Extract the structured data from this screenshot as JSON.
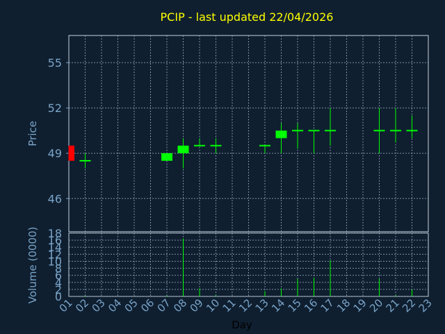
{
  "chart_data": [
    {
      "type": "candlestick",
      "title": "PCIP - last updated 22/04/2026",
      "ylabel": "Price",
      "ylim": [
        43.8,
        56.8
      ],
      "yticks": [
        "46",
        "49",
        "52",
        "55"
      ],
      "grid": true,
      "candles": [
        {
          "day": "01",
          "open": 49.5,
          "high": 49.5,
          "low": 48.5,
          "close": 48.5
        },
        {
          "day": "02",
          "open": 48.5,
          "high": 49.0,
          "low": 48.0,
          "close": 48.5
        },
        {
          "day": "07",
          "open": 48.5,
          "high": 49.0,
          "low": 48.5,
          "close": 49.0
        },
        {
          "day": "08",
          "open": 49.0,
          "high": 50.0,
          "low": 48.0,
          "close": 49.5
        },
        {
          "day": "09",
          "open": 49.5,
          "high": 50.0,
          "low": 49.5,
          "close": 49.5
        },
        {
          "day": "10",
          "open": 49.5,
          "high": 50.0,
          "low": 49.0,
          "close": 49.5
        },
        {
          "day": "13",
          "open": 49.5,
          "high": 49.5,
          "low": 49.0,
          "close": 49.5
        },
        {
          "day": "14",
          "open": 50.0,
          "high": 51.0,
          "low": 49.0,
          "close": 50.5
        },
        {
          "day": "15",
          "open": 50.5,
          "high": 51.0,
          "low": 49.3,
          "close": 50.5
        },
        {
          "day": "16",
          "open": 50.5,
          "high": 50.5,
          "low": 49.0,
          "close": 50.5
        },
        {
          "day": "17",
          "open": 50.5,
          "high": 52.0,
          "low": 49.5,
          "close": 50.5
        },
        {
          "day": "20",
          "open": 50.5,
          "high": 52.0,
          "low": 49.0,
          "close": 50.5
        },
        {
          "day": "21",
          "open": 50.5,
          "high": 52.0,
          "low": 49.7,
          "close": 50.5
        },
        {
          "day": "22",
          "open": 50.5,
          "high": 51.5,
          "low": 50.0,
          "close": 50.5
        }
      ],
      "colors": {
        "up": "#00ff00",
        "down": "#ff0000",
        "grid": "#a0b4c8",
        "axis": "#7aa4c8"
      }
    },
    {
      "type": "bar",
      "ylabel": "Volume (0000)",
      "xlabel": "Day",
      "ylim": [
        0,
        18
      ],
      "yticks": [
        "0",
        "2",
        "4",
        "6",
        "8",
        "10",
        "12",
        "14",
        "16",
        "18"
      ],
      "categories": [
        "01",
        "02",
        "03",
        "04",
        "05",
        "06",
        "07",
        "08",
        "09",
        "10",
        "11",
        "12",
        "13",
        "14",
        "15",
        "16",
        "17",
        "18",
        "19",
        "20",
        "21",
        "22",
        "23"
      ],
      "values": [
        0,
        0.2,
        0,
        0,
        0,
        0,
        0.2,
        16.5,
        2.3,
        0.3,
        0,
        0,
        1.5,
        2.3,
        5,
        5.3,
        10.3,
        0,
        0,
        5,
        0.3,
        2,
        0
      ],
      "grid": true
    }
  ]
}
